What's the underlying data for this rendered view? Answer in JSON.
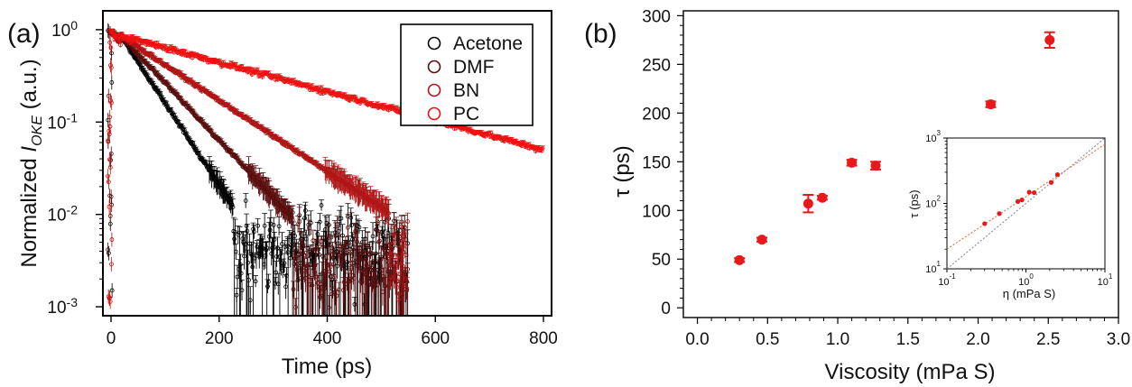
{
  "chart_data": [
    {
      "type": "scatter",
      "panel_label": "(a)",
      "xlabel": "Time (ps)",
      "ylabel_prefix": "Normalized ",
      "ylabel_main": "I",
      "ylabel_sub": "OKE",
      "ylabel_suffix": " (a.u.)",
      "xlim": [
        -15,
        815
      ],
      "ylim": [
        0.0008,
        1.6
      ],
      "yscale": "log",
      "xticks": [
        0,
        200,
        400,
        600,
        800
      ],
      "yticks": [
        {
          "value": 1,
          "mant": "10",
          "exp": "0"
        },
        {
          "value": 0.1,
          "mant": "10",
          "exp": "-1"
        },
        {
          "value": 0.01,
          "mant": "10",
          "exp": "-2"
        },
        {
          "value": 0.001,
          "mant": "10",
          "exp": "-3"
        }
      ],
      "legend_position": "top-right",
      "series": [
        {
          "name": "Acetone",
          "color": "#000000",
          "amp": 0.85,
          "tau": 49,
          "t_end": 550,
          "noise_floor": 0.004
        },
        {
          "name": "DMF",
          "color": "#5a0d0d",
          "amp": 0.85,
          "tau": 70,
          "t_end": 550,
          "noise_floor": 0.003
        },
        {
          "name": "BN",
          "color": "#b01515",
          "amp": 0.85,
          "tau": 113,
          "t_end": 550,
          "noise_floor": 0.0035
        },
        {
          "name": "PC",
          "color": "#ee1111",
          "amp": 0.85,
          "tau": 275,
          "t_end": 800,
          "noise_floor": 0.0
        }
      ]
    },
    {
      "type": "scatter",
      "panel_label": "(b)",
      "xlabel": "Viscosity (mPa S)",
      "ylabel": "τ (ps)",
      "xlim": [
        -0.1,
        3.0
      ],
      "ylim": [
        -10,
        305
      ],
      "xticks": [
        "0.0",
        "0.5",
        "1.0",
        "1.5",
        "2.0",
        "2.5",
        "3.0"
      ],
      "yticks": [
        "0",
        "50",
        "100",
        "150",
        "200",
        "250",
        "300"
      ],
      "color": "#e8191a",
      "points": [
        {
          "x": 0.3,
          "y": 49,
          "err": 2
        },
        {
          "x": 0.46,
          "y": 70,
          "err": 2
        },
        {
          "x": 0.79,
          "y": 107,
          "err": 9
        },
        {
          "x": 0.89,
          "y": 113,
          "err": 2
        },
        {
          "x": 1.1,
          "y": 149,
          "err": 3
        },
        {
          "x": 1.27,
          "y": 146,
          "err": 4
        },
        {
          "x": 2.09,
          "y": 209,
          "err": 3
        },
        {
          "x": 2.51,
          "y": 275,
          "err": 8
        }
      ],
      "inset": {
        "type": "scatter",
        "xscale": "log",
        "yscale": "log",
        "xlabel": "η (mPa S)",
        "ylabel": "τ (ps)",
        "xlim": [
          0.1,
          10
        ],
        "ylim": [
          10,
          1000
        ],
        "xticks": [
          {
            "value": 0.1,
            "mant": "10",
            "exp": "-1"
          },
          {
            "value": 1,
            "mant": "10",
            "exp": "0"
          },
          {
            "value": 10,
            "mant": "10",
            "exp": "1"
          }
        ],
        "yticks": [
          {
            "value": 10,
            "mant": "10",
            "exp": "1"
          },
          {
            "value": 100,
            "mant": "10",
            "exp": "2"
          },
          {
            "value": 1000,
            "mant": "10",
            "exp": "3"
          }
        ],
        "fit_lines": [
          {
            "color": "#e8733a",
            "dash": "2,2",
            "x1": 0.1,
            "y1": 20,
            "x2": 10,
            "y2": 800
          },
          {
            "color": "#8a8aa8",
            "dash": "2,2",
            "x1": 0.1,
            "y1": 10,
            "x2": 10,
            "y2": 1000
          }
        ]
      }
    }
  ]
}
